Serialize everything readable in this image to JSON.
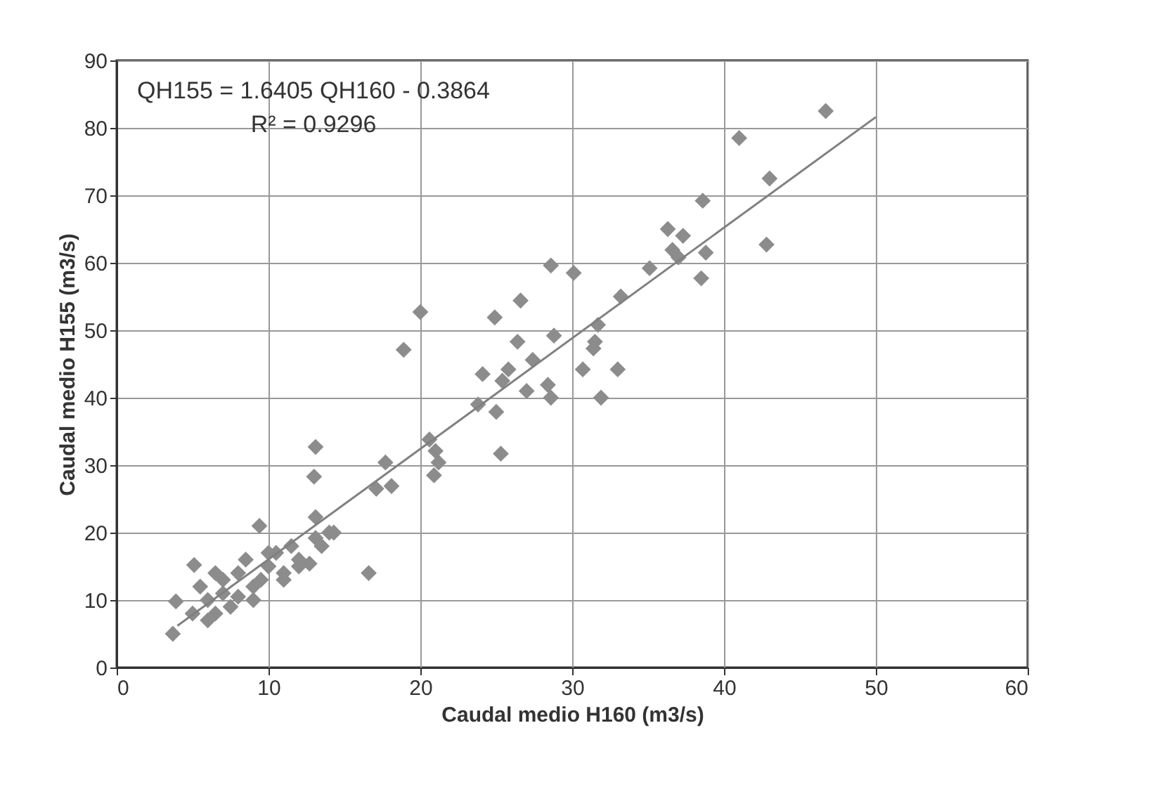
{
  "chart_data": {
    "type": "scatter",
    "xlabel": "Caudal medio H160 (m3/s)",
    "ylabel": "Caudal medio H155 (m3/s)",
    "xlim": [
      0,
      60
    ],
    "xticks": [
      0,
      10,
      20,
      30,
      40,
      50,
      60
    ],
    "ylim": [
      0,
      90
    ],
    "yticks": [
      0,
      10,
      20,
      30,
      40,
      50,
      60,
      70,
      80,
      90
    ],
    "grid": true,
    "marker": "diamond",
    "annotations": [
      "QH155 = 1.6405 QH160 - 0.3864",
      "R² = 0.9296"
    ],
    "series": [
      {
        "color": "#8c8c8c",
        "x": [
          46.7,
          41.0,
          43.0,
          42.8,
          38.6,
          36.3,
          37.3,
          36.6,
          37.0,
          38.8,
          38.5,
          35.1,
          33.2,
          28.6,
          30.1,
          26.6,
          24.9,
          20.0,
          18.9,
          26.4,
          28.8,
          27.4,
          31.7,
          31.5,
          31.4,
          30.7,
          33.0,
          25.8,
          24.1,
          25.4,
          27.0,
          28.4,
          28.6,
          31.9,
          23.8,
          25.0,
          25.3,
          20.6,
          21.0,
          21.2,
          20.9,
          17.7,
          17.1,
          18.1,
          13.1,
          13.0,
          9.4,
          13.1,
          14.3,
          13.1,
          16.6,
          12.7,
          5.1,
          3.9,
          3.7,
          5.5,
          6.0,
          6.5,
          7.0,
          7.0,
          7.5,
          8.0,
          8.5,
          9.0,
          9.0,
          10.0,
          10.5,
          11.0,
          11.5,
          12.0,
          11.0,
          5.0,
          6.0,
          8.0,
          9.5,
          10.0,
          12.0,
          13.5,
          14.0,
          6.5
        ],
        "values": [
          82.5,
          78.5,
          72.5,
          62.7,
          69.2,
          65.0,
          64.0,
          61.9,
          60.8,
          61.5,
          57.7,
          59.2,
          55.0,
          59.6,
          58.5,
          54.4,
          51.9,
          52.7,
          47.1,
          48.3,
          49.2,
          45.6,
          50.8,
          48.3,
          47.3,
          44.2,
          44.2,
          44.2,
          43.5,
          42.5,
          41.0,
          41.9,
          40.0,
          40.0,
          39.0,
          37.9,
          31.7,
          33.8,
          32.1,
          30.4,
          28.5,
          30.4,
          26.5,
          26.9,
          32.7,
          28.3,
          21.0,
          22.3,
          20.0,
          19.2,
          14.0,
          15.4,
          15.2,
          9.8,
          5.0,
          12.0,
          10.0,
          8.0,
          13.0,
          11.0,
          9.0,
          14.0,
          16.0,
          12.0,
          10.0,
          15.0,
          17.0,
          14.0,
          18.0,
          16.0,
          13.0,
          8.0,
          7.0,
          10.5,
          13.0,
          17.0,
          15.0,
          18.0,
          20.0,
          14.0
        ]
      },
      {
        "type": "line",
        "marker": "none",
        "color": "#808080",
        "x": [
          4,
          50
        ],
        "values": [
          6.2,
          81.6
        ]
      }
    ]
  }
}
